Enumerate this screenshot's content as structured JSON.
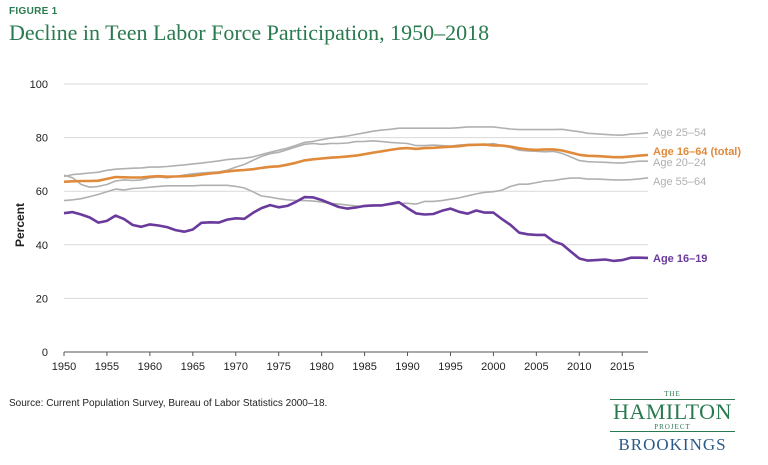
{
  "figure_label": "FIGURE 1",
  "source_note": "Source: Current Population Survey, Bureau of Labor Statistics 2000–18.",
  "logo": {
    "the": "THE",
    "hamilton": "HAMILTON",
    "project": "PROJECT",
    "brookings": "BROOKINGS"
  },
  "chart_data": {
    "type": "line",
    "title": "Decline in Teen Labor Force Participation, 1950–2018",
    "xlabel": "",
    "ylabel": "Percent",
    "xlim": [
      1950,
      2018
    ],
    "ylim": [
      0,
      100
    ],
    "x_ticks": [
      "1950",
      "1955",
      "1960",
      "1965",
      "1970",
      "1975",
      "1980",
      "1985",
      "1990",
      "1995",
      "2000",
      "2005",
      "2010",
      "2015"
    ],
    "y_ticks": [
      "0",
      "20",
      "40",
      "60",
      "80",
      "100"
    ],
    "grid": true,
    "x": [
      1950,
      1951,
      1952,
      1953,
      1954,
      1955,
      1956,
      1957,
      1958,
      1959,
      1960,
      1961,
      1962,
      1963,
      1964,
      1965,
      1966,
      1967,
      1968,
      1969,
      1970,
      1971,
      1972,
      1973,
      1974,
      1975,
      1976,
      1977,
      1978,
      1979,
      1980,
      1981,
      1982,
      1983,
      1984,
      1985,
      1986,
      1987,
      1988,
      1989,
      1990,
      1991,
      1992,
      1993,
      1994,
      1995,
      1996,
      1997,
      1998,
      1999,
      2000,
      2001,
      2002,
      2003,
      2004,
      2005,
      2006,
      2007,
      2008,
      2009,
      2010,
      2011,
      2012,
      2013,
      2014,
      2015,
      2016,
      2017,
      2018
    ],
    "series": [
      {
        "name": "Age 25–54",
        "color": "#b0b0b0",
        "emphasis": false,
        "values": [
          65.5,
          66.2,
          66.5,
          66.8,
          67.1,
          67.8,
          68.2,
          68.4,
          68.6,
          68.7,
          69.0,
          69.0,
          69.2,
          69.5,
          69.8,
          70.2,
          70.5,
          70.9,
          71.3,
          71.8,
          72.1,
          72.3,
          72.8,
          73.7,
          74.5,
          75.3,
          76.1,
          77.1,
          78.2,
          78.6,
          79.2,
          79.8,
          80.2,
          80.6,
          81.2,
          81.8,
          82.4,
          82.8,
          83.1,
          83.5,
          83.5,
          83.5,
          83.5,
          83.5,
          83.5,
          83.5,
          83.7,
          84.0,
          84.0,
          84.0,
          84.0,
          83.6,
          83.2,
          83.0,
          83.0,
          83.0,
          83.0,
          83.0,
          83.1,
          82.6,
          82.2,
          81.6,
          81.4,
          81.2,
          81.0,
          80.9,
          81.3,
          81.5,
          81.8
        ]
      },
      {
        "name": "Age 16–64 (total)",
        "color": "#e08a3c",
        "emphasis": true,
        "values": [
          63.5,
          63.7,
          63.8,
          63.8,
          63.9,
          64.6,
          65.3,
          65.2,
          65.1,
          65.1,
          65.4,
          65.6,
          65.4,
          65.5,
          65.6,
          65.8,
          66.2,
          66.6,
          66.9,
          67.4,
          67.7,
          67.9,
          68.2,
          68.7,
          69.1,
          69.3,
          69.9,
          70.6,
          71.5,
          71.9,
          72.2,
          72.5,
          72.7,
          73.0,
          73.3,
          73.8,
          74.4,
          74.9,
          75.4,
          75.9,
          76.1,
          75.8,
          76.1,
          76.2,
          76.4,
          76.6,
          76.8,
          77.2,
          77.3,
          77.4,
          77.1,
          77.0,
          76.6,
          76.0,
          75.6,
          75.4,
          75.6,
          75.6,
          75.2,
          74.4,
          73.6,
          73.2,
          73.1,
          72.9,
          72.7,
          72.7,
          73.0,
          73.3,
          73.5
        ]
      },
      {
        "name": "Age 20–24",
        "color": "#b0b0b0",
        "emphasis": false,
        "values": [
          66.0,
          65.0,
          62.5,
          61.5,
          61.8,
          62.5,
          63.8,
          64.2,
          64.0,
          64.2,
          65.0,
          65.3,
          65.0,
          65.5,
          66.0,
          66.5,
          66.8,
          67.0,
          67.2,
          67.8,
          69.0,
          70.0,
          71.5,
          73.0,
          74.0,
          74.5,
          75.5,
          76.5,
          77.5,
          77.8,
          77.5,
          77.8,
          77.8,
          78.0,
          78.5,
          78.6,
          78.8,
          78.5,
          78.2,
          78.0,
          77.8,
          77.0,
          77.0,
          77.2,
          77.0,
          76.8,
          77.2,
          77.4,
          77.5,
          77.4,
          77.8,
          77.0,
          76.3,
          75.3,
          75.0,
          74.9,
          74.7,
          74.9,
          74.1,
          72.8,
          71.4,
          71.0,
          70.9,
          70.8,
          70.6,
          70.5,
          70.9,
          71.2,
          71.2
        ]
      },
      {
        "name": "Age 55–64",
        "color": "#b0b0b0",
        "emphasis": false,
        "values": [
          56.5,
          56.8,
          57.2,
          58.0,
          58.8,
          59.8,
          60.8,
          60.5,
          61.0,
          61.2,
          61.5,
          61.8,
          62.0,
          62.0,
          62.0,
          62.0,
          62.2,
          62.2,
          62.2,
          62.2,
          61.8,
          61.2,
          59.8,
          58.2,
          57.8,
          57.2,
          56.8,
          56.5,
          56.5,
          56.3,
          56.0,
          55.5,
          55.2,
          54.8,
          54.5,
          54.3,
          54.5,
          54.8,
          55.0,
          55.5,
          55.5,
          55.2,
          56.2,
          56.2,
          56.5,
          57.0,
          57.5,
          58.3,
          59.0,
          59.6,
          59.8,
          60.4,
          61.8,
          62.6,
          62.6,
          63.2,
          63.8,
          64.0,
          64.5,
          64.9,
          64.9,
          64.5,
          64.5,
          64.4,
          64.2,
          64.2,
          64.3,
          64.6,
          65.0
        ]
      },
      {
        "name": "Age 16–19",
        "color": "#6a3a9c",
        "emphasis": true,
        "values": [
          51.8,
          52.2,
          51.3,
          50.2,
          48.3,
          48.9,
          50.9,
          49.6,
          47.4,
          46.7,
          47.6,
          47.2,
          46.6,
          45.5,
          44.9,
          45.7,
          48.2,
          48.4,
          48.3,
          49.4,
          49.9,
          49.7,
          51.9,
          53.7,
          54.8,
          54.0,
          54.5,
          56.0,
          57.8,
          57.7,
          56.7,
          55.4,
          54.1,
          53.5,
          53.9,
          54.5,
          54.7,
          54.7,
          55.3,
          55.9,
          53.7,
          51.7,
          51.3,
          51.5,
          52.7,
          53.5,
          52.3,
          51.6,
          52.8,
          52.0,
          52.0,
          49.6,
          47.4,
          44.5,
          43.9,
          43.7,
          43.7,
          41.3,
          40.2,
          37.5,
          34.9,
          34.1,
          34.3,
          34.5,
          34.0,
          34.3,
          35.2,
          35.2,
          35.1
        ]
      }
    ],
    "series_labels": [
      "Age 25–54",
      "Age 16–64 (total)",
      "Age 20–24",
      "Age 55–64",
      "Age 16–19"
    ]
  }
}
